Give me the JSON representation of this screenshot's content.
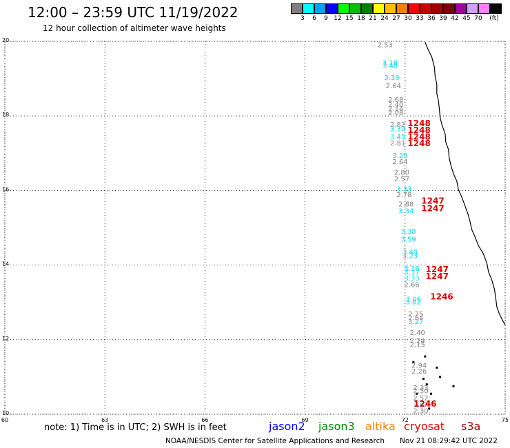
{
  "header": {
    "title": "12:00 – 23:59 UTC 11/19/2022",
    "subtitle": "12 hour collection of altimeter wave heights"
  },
  "legend": {
    "unit": "(ft)",
    "colors": [
      "#808080",
      "#00ffff",
      "#00a0ff",
      "#0000ff",
      "#00ff00",
      "#00c000",
      "#008000",
      "#ffff00",
      "#ffc000",
      "#ff8000",
      "#ff0000",
      "#c80000",
      "#a00000",
      "#800000",
      "#a000a0",
      "#d0a0ff",
      "#ff80ff",
      "#000000"
    ],
    "labels": [
      "3",
      "6",
      "9",
      "12",
      "15",
      "18",
      "21",
      "24",
      "27",
      "30",
      "33",
      "36",
      "39",
      "42",
      "45",
      "70"
    ]
  },
  "axes": {
    "x_ticks": [
      "60",
      "63",
      "66",
      "69",
      "72",
      "75"
    ],
    "y_ticks": [
      "20",
      "18",
      "16",
      "14",
      "12",
      "10"
    ]
  },
  "colors": {
    "gray": "#808080",
    "cyan": "#00e0f0",
    "red": "#e00000"
  },
  "observations": [
    {
      "lon": 71.4,
      "lat": 19.92,
      "t": "2.53",
      "c": "gray"
    },
    {
      "lon": 71.55,
      "lat": 19.44,
      "t": "3.16",
      "c": "cyan"
    },
    {
      "lon": 71.55,
      "lat": 19.36,
      "t": "3.48",
      "c": "cyan"
    },
    {
      "lon": 71.6,
      "lat": 19.04,
      "t": "3.39",
      "c": "cyan"
    },
    {
      "lon": 71.65,
      "lat": 18.82,
      "t": "2.64",
      "c": "gray"
    },
    {
      "lon": 71.72,
      "lat": 18.45,
      "t": "2.68",
      "c": "gray"
    },
    {
      "lon": 71.72,
      "lat": 18.32,
      "t": "2.40",
      "c": "gray"
    },
    {
      "lon": 71.72,
      "lat": 18.2,
      "t": "2.14",
      "c": "gray"
    },
    {
      "lon": 71.72,
      "lat": 18.1,
      "t": "2.08",
      "c": "gray"
    },
    {
      "lon": 71.78,
      "lat": 17.78,
      "t": "2.82",
      "c": "gray"
    },
    {
      "lon": 71.78,
      "lat": 17.66,
      "t": "3.39",
      "c": "cyan"
    },
    {
      "lon": 71.78,
      "lat": 17.46,
      "t": "3.45",
      "c": "cyan"
    },
    {
      "lon": 71.78,
      "lat": 17.28,
      "t": "2.81",
      "c": "gray"
    },
    {
      "lon": 71.85,
      "lat": 16.95,
      "t": "3.29",
      "c": "cyan"
    },
    {
      "lon": 71.85,
      "lat": 16.78,
      "t": "2.64",
      "c": "gray"
    },
    {
      "lon": 71.9,
      "lat": 16.5,
      "t": "2.80",
      "c": "gray"
    },
    {
      "lon": 71.9,
      "lat": 16.32,
      "t": "2.57",
      "c": "gray"
    },
    {
      "lon": 71.97,
      "lat": 16.05,
      "t": "3.33",
      "c": "cyan"
    },
    {
      "lon": 71.97,
      "lat": 15.9,
      "t": "2.78",
      "c": "gray"
    },
    {
      "lon": 72.03,
      "lat": 15.65,
      "t": "2.88",
      "c": "gray"
    },
    {
      "lon": 72.03,
      "lat": 15.46,
      "t": "3.34",
      "c": "cyan"
    },
    {
      "lon": 72.1,
      "lat": 14.92,
      "t": "3.38",
      "c": "cyan"
    },
    {
      "lon": 72.1,
      "lat": 14.7,
      "t": "3.59",
      "c": "cyan"
    },
    {
      "lon": 72.15,
      "lat": 14.36,
      "t": "3.49",
      "c": "cyan"
    },
    {
      "lon": 72.15,
      "lat": 14.26,
      "t": "3.23",
      "c": "cyan"
    },
    {
      "lon": 72.2,
      "lat": 13.92,
      "t": "3.16",
      "c": "cyan"
    },
    {
      "lon": 72.2,
      "lat": 13.82,
      "t": "3.37",
      "c": "cyan"
    },
    {
      "lon": 72.2,
      "lat": 13.66,
      "t": "3.33",
      "c": "cyan"
    },
    {
      "lon": 72.2,
      "lat": 13.48,
      "t": "2.66",
      "c": "gray"
    },
    {
      "lon": 72.25,
      "lat": 13.1,
      "t": "3.06",
      "c": "cyan"
    },
    {
      "lon": 72.25,
      "lat": 13.02,
      "t": "3.02",
      "c": "cyan"
    },
    {
      "lon": 72.32,
      "lat": 12.7,
      "t": "2.75",
      "c": "gray"
    },
    {
      "lon": 72.32,
      "lat": 12.6,
      "t": "2.84",
      "c": "gray"
    },
    {
      "lon": 72.32,
      "lat": 12.5,
      "t": "3.27",
      "c": "cyan"
    },
    {
      "lon": 72.37,
      "lat": 12.2,
      "t": "2.40",
      "c": "gray"
    },
    {
      "lon": 72.37,
      "lat": 11.98,
      "t": "2.24",
      "c": "gray"
    },
    {
      "lon": 72.37,
      "lat": 11.88,
      "t": "2.15",
      "c": "gray"
    },
    {
      "lon": 72.42,
      "lat": 11.32,
      "t": "2.94",
      "c": "gray"
    },
    {
      "lon": 72.42,
      "lat": 11.16,
      "t": "2.26",
      "c": "gray"
    },
    {
      "lon": 72.47,
      "lat": 10.72,
      "t": "2.33",
      "c": "gray"
    },
    {
      "lon": 72.47,
      "lat": 10.64,
      "t": "2.50",
      "c": "gray"
    },
    {
      "lon": 72.47,
      "lat": 10.44,
      "t": "2.52",
      "c": "gray"
    },
    {
      "lon": 72.47,
      "lat": 10.26,
      "t": "3.02",
      "c": "cyan"
    },
    {
      "lon": 72.47,
      "lat": 10.1,
      "t": "2.30",
      "c": "gray"
    },
    {
      "lon": 72.42,
      "lat": 17.8,
      "t": "1248",
      "c": "red",
      "big": true
    },
    {
      "lon": 72.42,
      "lat": 17.62,
      "t": "1248",
      "c": "red",
      "big": true
    },
    {
      "lon": 72.42,
      "lat": 17.44,
      "t": "1248",
      "c": "red",
      "big": true
    },
    {
      "lon": 72.42,
      "lat": 17.26,
      "t": "1248",
      "c": "red",
      "big": true
    },
    {
      "lon": 72.83,
      "lat": 15.72,
      "t": "1247",
      "c": "red",
      "big": true
    },
    {
      "lon": 72.83,
      "lat": 15.52,
      "t": "1247",
      "c": "red",
      "big": true
    },
    {
      "lon": 72.96,
      "lat": 13.88,
      "t": "1247",
      "c": "red",
      "big": true
    },
    {
      "lon": 72.96,
      "lat": 13.7,
      "t": "1247",
      "c": "red",
      "big": true
    },
    {
      "lon": 73.1,
      "lat": 13.15,
      "t": "1246",
      "c": "red",
      "big": true
    },
    {
      "lon": 72.6,
      "lat": 10.28,
      "t": "1246",
      "c": "red",
      "big": true
    }
  ],
  "coast": [
    [
      72.6,
      19.98
    ],
    [
      72.68,
      19.8
    ],
    [
      72.8,
      19.58
    ],
    [
      72.88,
      19.3
    ],
    [
      72.9,
      19.05
    ],
    [
      72.95,
      18.85
    ],
    [
      72.95,
      18.6
    ],
    [
      73.0,
      18.4
    ],
    [
      73.03,
      18.15
    ],
    [
      73.05,
      17.95
    ],
    [
      73.12,
      17.72
    ],
    [
      73.2,
      17.52
    ],
    [
      73.22,
      17.3
    ],
    [
      73.3,
      17.1
    ],
    [
      73.32,
      16.88
    ],
    [
      73.38,
      16.65
    ],
    [
      73.45,
      16.45
    ],
    [
      73.55,
      16.25
    ],
    [
      73.6,
      16.02
    ],
    [
      73.7,
      15.82
    ],
    [
      73.8,
      15.58
    ],
    [
      73.88,
      15.38
    ],
    [
      73.95,
      15.15
    ],
    [
      74.0,
      14.95
    ],
    [
      74.1,
      14.75
    ],
    [
      74.2,
      14.52
    ],
    [
      74.35,
      14.3
    ],
    [
      74.45,
      14.05
    ],
    [
      74.5,
      13.82
    ],
    [
      74.6,
      13.6
    ],
    [
      74.68,
      13.35
    ],
    [
      74.72,
      13.1
    ],
    [
      74.75,
      12.88
    ],
    [
      74.82,
      12.7
    ],
    [
      74.92,
      12.52
    ],
    [
      75.0,
      12.4
    ]
  ],
  "islands": [
    [
      72.25,
      11.4
    ],
    [
      72.6,
      11.55
    ],
    [
      72.95,
      11.25
    ],
    [
      73.05,
      11.0
    ],
    [
      72.55,
      10.95
    ],
    [
      72.65,
      10.8
    ],
    [
      73.45,
      10.75
    ],
    [
      72.35,
      10.55
    ],
    [
      72.78,
      10.55
    ],
    [
      72.72,
      10.15
    ]
  ],
  "notes": {
    "text": "note:  1) Time is in UTC;  2) SWH is in feet",
    "satellites": [
      {
        "label": "jason2",
        "color": "#0000ff"
      },
      {
        "label": "jason3",
        "color": "#008000"
      },
      {
        "label": "altika",
        "color": "#ff8000"
      },
      {
        "label": "cryosat",
        "color": "#e00000"
      },
      {
        "label": "s3a",
        "color": "#a00000"
      }
    ]
  },
  "footer": {
    "credit": "NOAA/NESDIS Center for Satellite Applications and Research",
    "timestamp": "Nov 21 08:29:42 UTC 2022"
  }
}
